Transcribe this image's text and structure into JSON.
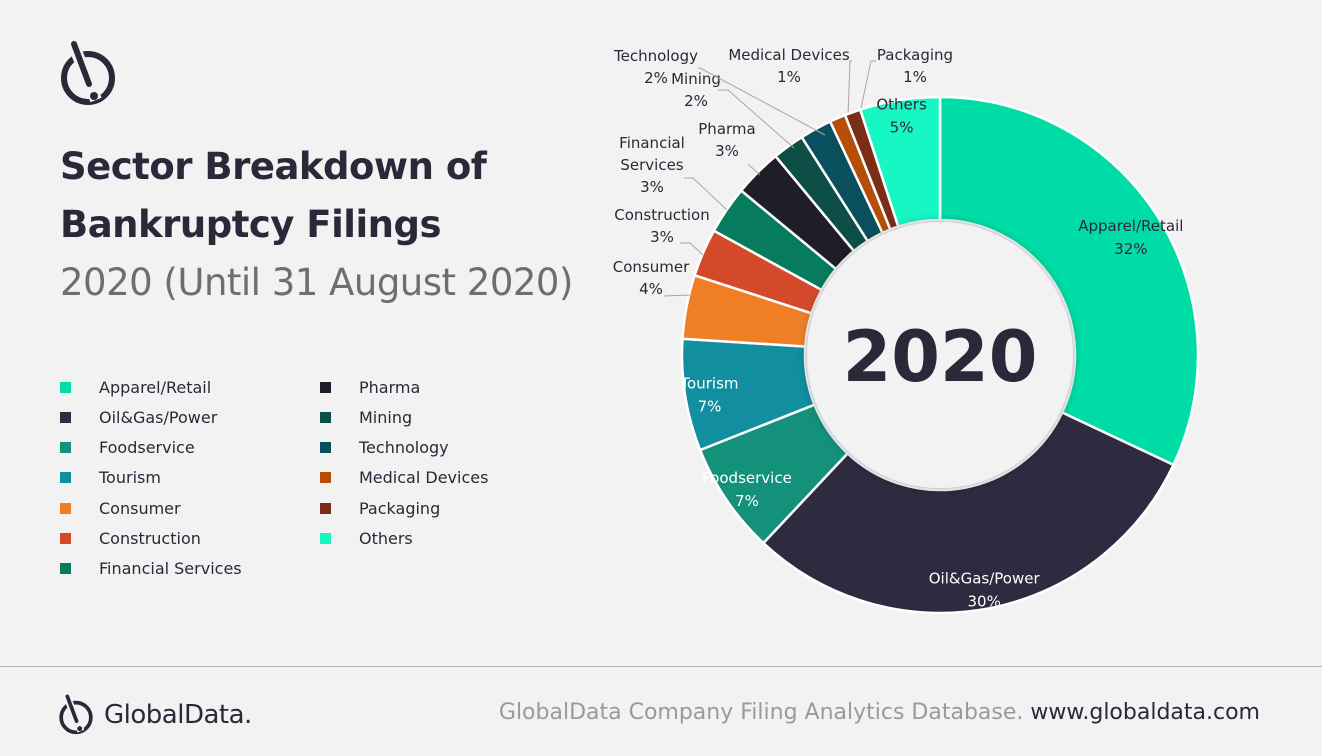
{
  "header": {
    "title_line1": "Sector Breakdown of",
    "title_line2": "Bankruptcy Filings",
    "subtitle": "2020 (Until 31 August 2020)"
  },
  "footer": {
    "brand": "GlobalData.",
    "source": "GlobalData Company Filing Analytics Database.",
    "url": "www.globaldata.com"
  },
  "chart_data": {
    "type": "pie",
    "variant": "donut",
    "center_label": "2020",
    "legend_placement": "left",
    "slices": [
      {
        "name": "Apparel/Retail",
        "value": 32,
        "label": "32%",
        "color": "#00dca5"
      },
      {
        "name": "Oil&Gas/Power",
        "value": 30,
        "label": "30%",
        "color": "#2e2a3f"
      },
      {
        "name": "Foodservice",
        "value": 7,
        "label": "7%",
        "color": "#14917a"
      },
      {
        "name": "Tourism",
        "value": 7,
        "label": "7%",
        "color": "#118ea0"
      },
      {
        "name": "Consumer",
        "value": 4,
        "label": "4%",
        "color": "#f07e25"
      },
      {
        "name": "Construction",
        "value": 3,
        "label": "3%",
        "color": "#d5492b"
      },
      {
        "name": "Financial Services",
        "value": 3,
        "label": "3%",
        "color": "#067b5d"
      },
      {
        "name": "Pharma",
        "value": 3,
        "label": "3%",
        "color": "#1f1d27"
      },
      {
        "name": "Mining",
        "value": 2,
        "label": "2%",
        "color": "#0d4f46"
      },
      {
        "name": "Technology",
        "value": 2,
        "label": "2%",
        "color": "#0a4f5e"
      },
      {
        "name": "Medical Devices",
        "value": 1,
        "label": "1%",
        "color": "#b54e06"
      },
      {
        "name": "Packaging",
        "value": 1,
        "label": "1%",
        "color": "#7a2e18"
      },
      {
        "name": "Others",
        "value": 5,
        "label": "5%",
        "color": "#17f7c3"
      }
    ]
  }
}
